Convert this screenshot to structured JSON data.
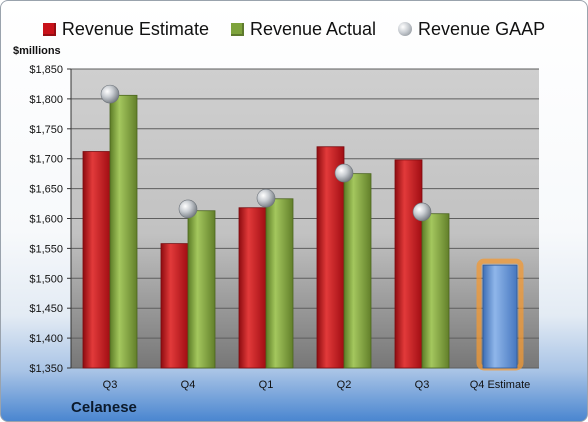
{
  "unit_label": "$millions",
  "company": "Celanese",
  "legend": {
    "estimate": "Revenue Estimate",
    "actual": "Revenue Actual",
    "gaap": "Revenue GAAP"
  },
  "colors": {
    "estimate": "#c8121a",
    "actual": "#7ea33c",
    "gaap": "#b9bec4",
    "q4_estimate": "#5b8fd6",
    "q4_glow": "#f39a34"
  },
  "chart_data": {
    "type": "bar",
    "categories": [
      "Q3",
      "Q4",
      "Q1",
      "Q2",
      "Q3",
      "Q4 Estimate"
    ],
    "series": [
      {
        "name": "Revenue Estimate",
        "values": [
          1712,
          1558,
          1618,
          1720,
          1698,
          null
        ]
      },
      {
        "name": "Revenue Actual",
        "values": [
          1806,
          1613,
          1633,
          1675,
          1608,
          null
        ]
      },
      {
        "name": "Revenue GAAP",
        "values": [
          1808,
          1616,
          1634,
          1676,
          1611,
          null
        ]
      }
    ],
    "highlight": {
      "category": "Q4 Estimate",
      "value": 1522
    },
    "ylim": [
      1350,
      1850
    ],
    "yticks": [
      "$1,350",
      "$1,400",
      "$1,450",
      "$1,500",
      "$1,550",
      "$1,600",
      "$1,650",
      "$1,700",
      "$1,750",
      "$1,800",
      "$1,850"
    ],
    "ylabel": "$millions",
    "grid": true,
    "legend_position": "top"
  }
}
